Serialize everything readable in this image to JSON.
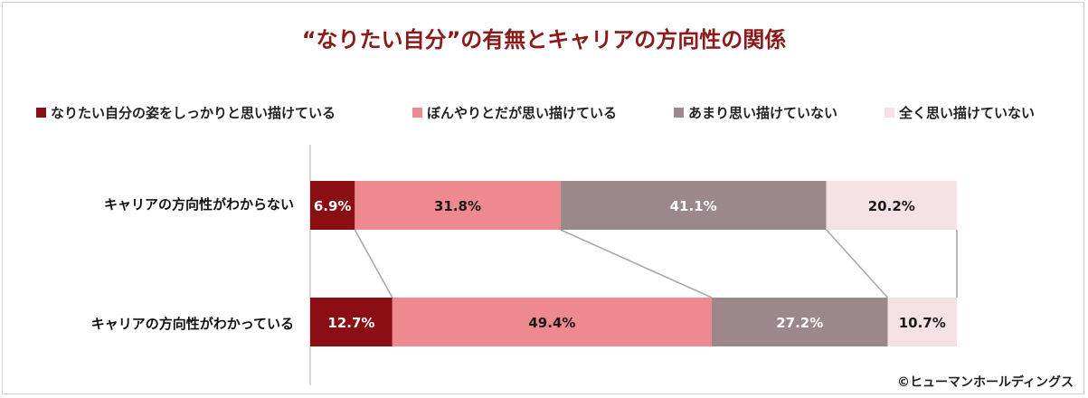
{
  "chart_data": {
    "type": "bar",
    "stacked": true,
    "orientation": "horizontal",
    "percent": true,
    "title": "“なりたい自分”の有無とキャリアの方向性の関係",
    "categories": [
      "キャリアの方向性がわからない",
      "キャリアの方向性がわかっている"
    ],
    "series": [
      {
        "name": "なりたい自分の姿をしっかりと思い描けている",
        "values": [
          6.9,
          12.7
        ],
        "labels": [
          "6.9%",
          "12.7%"
        ],
        "color": "#8b0e14",
        "text_color": "#ffffff"
      },
      {
        "name": "ぼんやりとだが思い描けている",
        "values": [
          31.8,
          49.4
        ],
        "labels": [
          "31.8%",
          "49.4%"
        ],
        "color": "#ee8a8f",
        "text_color": "#1a1a1a"
      },
      {
        "name": "あまり思い描けていない",
        "values": [
          41.1,
          27.2
        ],
        "labels": [
          "41.1%",
          "27.2%"
        ],
        "color": "#9c878a",
        "text_color": "#ffffff"
      },
      {
        "name": "全く思い描けていない",
        "values": [
          20.2,
          10.7
        ],
        "labels": [
          "20.2%",
          "10.7%"
        ],
        "color": "#f6e2e5",
        "text_color": "#1a1a1a"
      }
    ],
    "xlim": [
      0,
      100
    ],
    "legend_position": "top",
    "series_lines": true
  },
  "credit": "©ヒューマンホールディングス"
}
